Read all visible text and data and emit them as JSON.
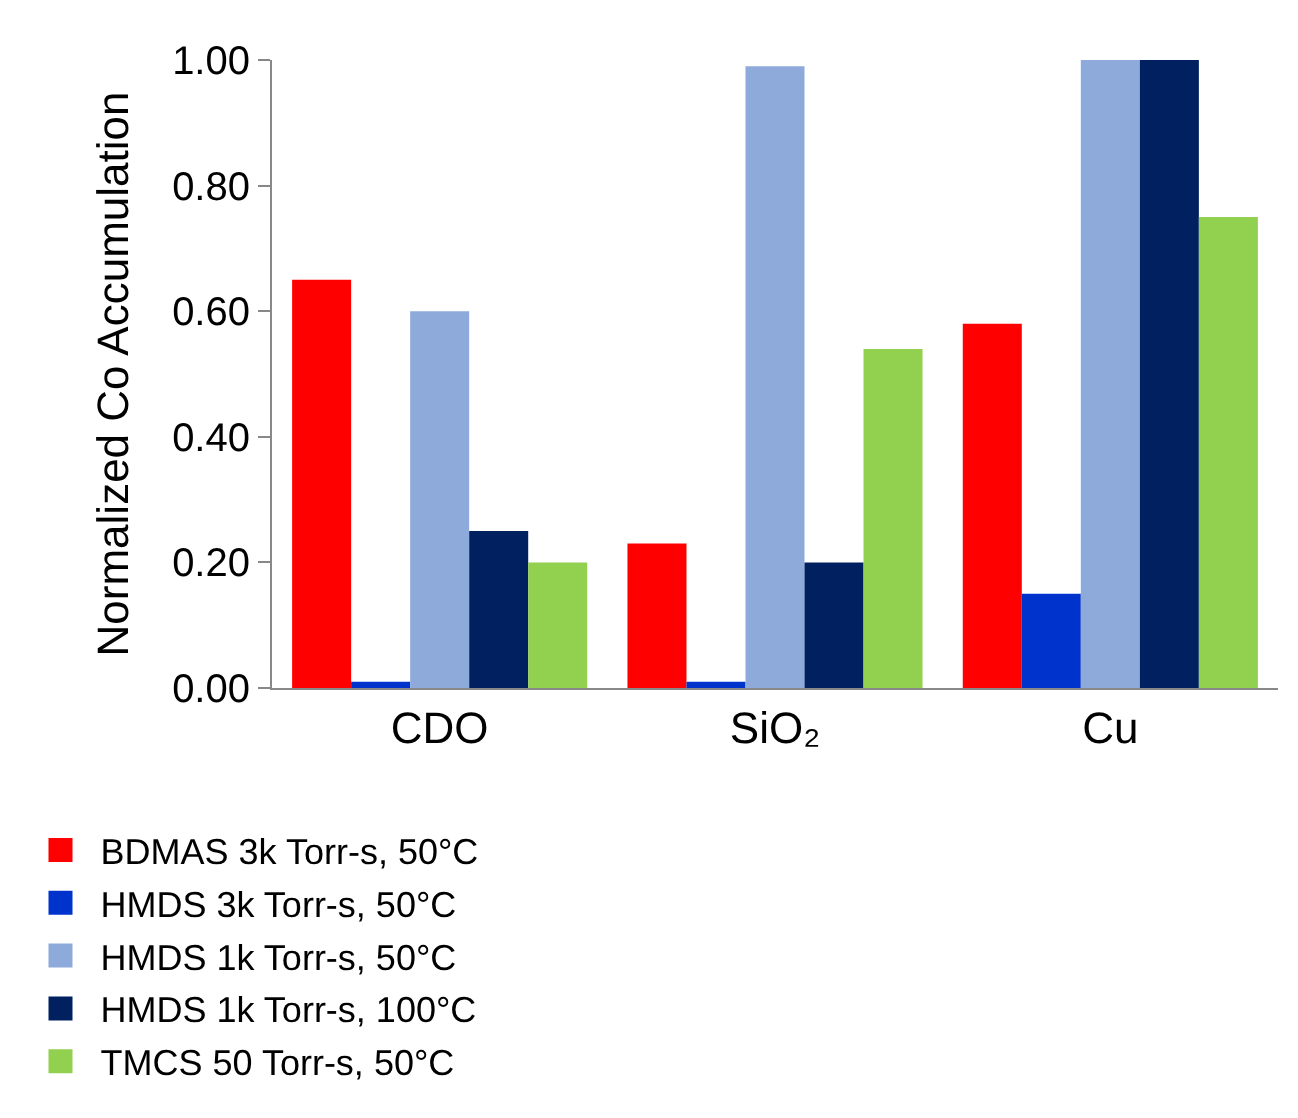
{
  "chart_data": {
    "type": "bar",
    "ylabel": "Normalized Co Accumulation",
    "categories": [
      "CDO",
      "SiO₂",
      "Cu"
    ],
    "series": [
      {
        "name": "BDMAS 3k Torr-s, 50°C",
        "color": "#ff0000",
        "values": [
          0.65,
          0.23,
          0.58
        ]
      },
      {
        "name": "HMDS 3k Torr-s, 50°C",
        "color": "#0033cc",
        "values": [
          0.01,
          0.01,
          0.15
        ]
      },
      {
        "name": "HMDS 1k Torr-s, 50°C",
        "color": "#8eaadb",
        "values": [
          0.6,
          0.99,
          1.0
        ]
      },
      {
        "name": "HMDS 1k Torr-s, 100°C",
        "color": "#002060",
        "values": [
          0.25,
          0.2,
          1.0
        ]
      },
      {
        "name": "TMCS 50 Torr-s, 50°C",
        "color": "#92d050",
        "values": [
          0.2,
          0.54,
          0.75
        ]
      }
    ],
    "ylim": [
      0,
      1
    ],
    "yticks": [
      {
        "value": 0,
        "label": "0.00"
      },
      {
        "value": 0.2,
        "label": "0.20"
      },
      {
        "value": 0.4,
        "label": "0.40"
      },
      {
        "value": 0.6,
        "label": "0.60"
      },
      {
        "value": 0.8,
        "label": "0.80"
      },
      {
        "value": 1,
        "label": "1.00"
      }
    ],
    "grid": false,
    "legend": "bottom"
  }
}
